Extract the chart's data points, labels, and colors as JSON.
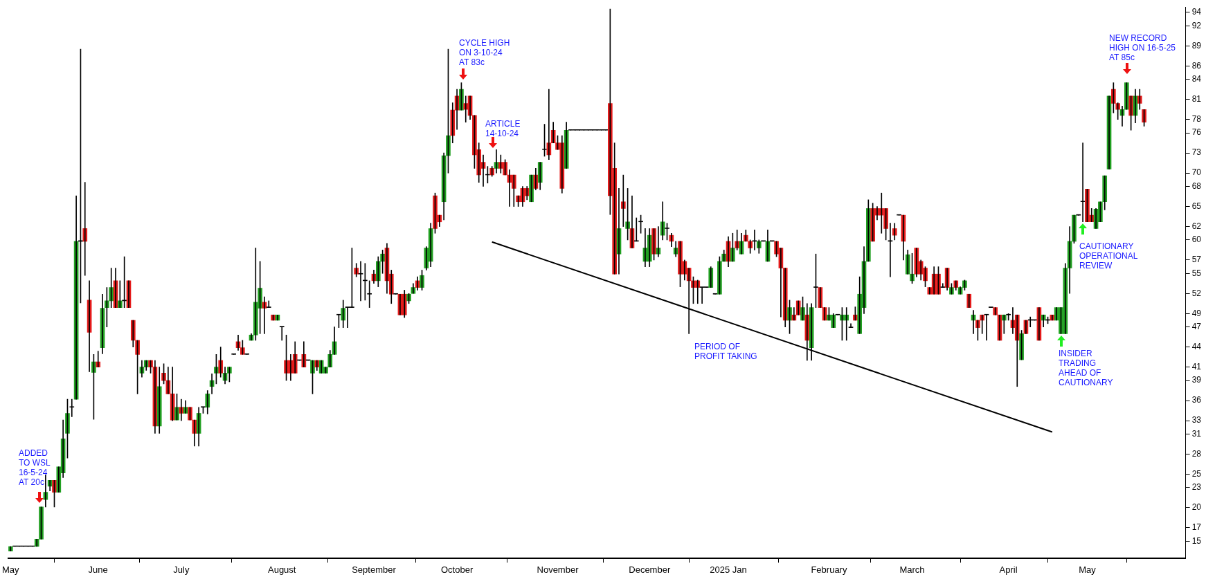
{
  "chart_data": {
    "type": "candlestick",
    "categories": [
      "May",
      null,
      null,
      null,
      null,
      null,
      null,
      null,
      null,
      null,
      null,
      null,
      null,
      null,
      null,
      null,
      null,
      null,
      null,
      null,
      "June",
      null,
      null,
      null,
      null,
      null,
      null,
      null,
      null,
      null,
      null,
      null,
      null,
      null,
      null,
      null,
      null,
      null,
      null,
      "July",
      null,
      null,
      null,
      null,
      null,
      null,
      null,
      null,
      null,
      null,
      null,
      null,
      null,
      null,
      null,
      null,
      null,
      null,
      null,
      null,
      null,
      null,
      "August",
      null,
      null,
      null,
      null,
      null,
      null,
      null,
      null,
      null,
      null,
      null,
      null,
      null,
      null,
      null,
      null,
      null,
      null,
      null,
      null,
      "September",
      null,
      null,
      null,
      null,
      null,
      null,
      null,
      null,
      null,
      null,
      null,
      null,
      null,
      null,
      null,
      null,
      null,
      null,
      "October",
      null,
      null,
      null,
      null,
      null,
      null,
      null,
      null,
      null,
      null,
      null,
      null,
      null,
      null,
      null,
      null,
      null,
      null,
      null,
      null,
      null,
      null,
      "November",
      null,
      null,
      null,
      null,
      null,
      null,
      null,
      null,
      null,
      null,
      null,
      null,
      null,
      null,
      null,
      null,
      null,
      null,
      null,
      null,
      "December",
      null,
      null,
      null,
      null,
      null,
      null,
      null,
      null,
      null,
      null,
      null,
      null,
      null,
      null,
      null,
      null,
      null,
      "2025 Jan",
      null,
      null,
      null,
      null,
      null,
      null,
      null,
      null,
      null,
      null,
      null,
      null,
      null,
      null,
      null,
      null,
      null,
      null,
      null,
      null,
      null,
      null,
      "February",
      null,
      null,
      null,
      null,
      null,
      null,
      null,
      null,
      null,
      null,
      null,
      null,
      null,
      null,
      null,
      null,
      null,
      null,
      "March",
      null,
      null,
      null,
      null,
      null,
      null,
      null,
      null,
      null,
      null,
      null,
      null,
      null,
      null,
      null,
      null,
      null,
      null,
      null,
      null,
      null,
      "April",
      null,
      null,
      null,
      null,
      null,
      null,
      null,
      null,
      null,
      null,
      null,
      null,
      null,
      null,
      null,
      null,
      null,
      "May",
      null,
      null,
      null,
      null,
      null,
      null,
      null,
      null,
      null,
      null,
      null,
      null,
      null,
      null,
      null,
      null,
      null,
      null,
      null,
      null,
      null,
      null
    ],
    "ohlc": [
      [
        13.5,
        14.2,
        13.5,
        14.2
      ],
      [
        14.2,
        14.2,
        14.2,
        14.2
      ],
      [
        14.2,
        14.2,
        14.2,
        14.2
      ],
      [
        14.2,
        14.2,
        14.2,
        14.2
      ],
      [
        14.2,
        14.2,
        14.2,
        14.2
      ],
      [
        14.2,
        14.2,
        14.2,
        14.2
      ],
      [
        14.2,
        15.3,
        14.2,
        15.3
      ],
      [
        15.3,
        20.1,
        15.3,
        20.1
      ],
      [
        21.2,
        24.9,
        20.1,
        22.3
      ],
      [
        23.2,
        24.1,
        22.5,
        24.1
      ],
      [
        24.1,
        24.1,
        20.1,
        22.3
      ],
      [
        22.3,
        26.1,
        22.3,
        26.1
      ],
      [
        25.2,
        33.1,
        24.5,
        30.3
      ],
      [
        31.1,
        36.2,
        27.4,
        34.1
      ],
      [
        35,
        36.2,
        33.6,
        35
      ],
      [
        36.2,
        66.6,
        36.2,
        59.8
      ],
      [
        59.8,
        88.5,
        50.6,
        59.8
      ],
      [
        61.7,
        68.6,
        54.7,
        59.8
      ],
      [
        51,
        53.9,
        40.3,
        46.2
      ],
      [
        40.2,
        42.9,
        33.2,
        41.8
      ],
      [
        41.8,
        43.4,
        41,
        41
      ],
      [
        43.9,
        51.9,
        43,
        49.8
      ],
      [
        49.9,
        52.9,
        47,
        50.9
      ],
      [
        50.9,
        55.8,
        49.9,
        52.9
      ],
      [
        53.9,
        55.8,
        49.9,
        49.9
      ],
      [
        49.9,
        53.9,
        49.9,
        50.9
      ],
      [
        50.9,
        57.5,
        49.9,
        50.9
      ],
      [
        53.9,
        53.9,
        49.9,
        49.9
      ],
      [
        48,
        48,
        44,
        45
      ],
      [
        45,
        45,
        37,
        42.9
      ],
      [
        40.1,
        42,
        39.5,
        41
      ],
      [
        41,
        42,
        40.5,
        42
      ],
      [
        42,
        42,
        40.1,
        41
      ],
      [
        41,
        42,
        31.1,
        32.2
      ],
      [
        32.2,
        41,
        31.1,
        38.1
      ],
      [
        40.1,
        41.5,
        38.5,
        39
      ],
      [
        39,
        41,
        37,
        37
      ],
      [
        37,
        41,
        33,
        33.1
      ],
      [
        33.1,
        37,
        33.1,
        35
      ],
      [
        35,
        36.2,
        33,
        34.1
      ],
      [
        34.1,
        36,
        34.1,
        35
      ],
      [
        35,
        35,
        33.1,
        33.1
      ],
      [
        33.1,
        33.1,
        29.2,
        31.1
      ],
      [
        31.1,
        35,
        29.2,
        34.1
      ],
      [
        35,
        35,
        34.1,
        35
      ],
      [
        35,
        37.5,
        34,
        37
      ],
      [
        38.1,
        40,
        37,
        39
      ],
      [
        40.1,
        42.9,
        38.5,
        41
      ],
      [
        42,
        44,
        39.5,
        40.1
      ],
      [
        39,
        41,
        38.5,
        40.1
      ],
      [
        40.1,
        41,
        38.8,
        41
      ],
      [
        42.9,
        42.9,
        42.9,
        42.9
      ],
      [
        44.8,
        45.8,
        43.5,
        43.9
      ],
      [
        43.9,
        45,
        42.9,
        42.9
      ],
      [
        42.9,
        42.9,
        42.9,
        42.9
      ],
      [
        45,
        46,
        45,
        45.8
      ],
      [
        45.8,
        58.8,
        45,
        50.7
      ],
      [
        49.8,
        56.8,
        46,
        52.8
      ],
      [
        50.7,
        51.5,
        46,
        49.8
      ],
      [
        49.9,
        50.9,
        49.9,
        49.9
      ],
      [
        48.8,
        48.8,
        48,
        48
      ],
      [
        48,
        48.8,
        48,
        48.8
      ],
      [
        47,
        47,
        45,
        47
      ],
      [
        42,
        45.8,
        39,
        40.1
      ],
      [
        42,
        42.9,
        39,
        40.1
      ],
      [
        42.9,
        44.8,
        40.1,
        40.1
      ],
      [
        42,
        42,
        42,
        42
      ],
      [
        42.9,
        44.8,
        41,
        41
      ],
      [
        42,
        42,
        42,
        42
      ],
      [
        40.1,
        42,
        37,
        42
      ],
      [
        42,
        42,
        40.5,
        41
      ],
      [
        40.1,
        42,
        40.1,
        42
      ],
      [
        40.1,
        41,
        40.1,
        41
      ],
      [
        41,
        43.5,
        41,
        42.9
      ],
      [
        42.9,
        47,
        42.9,
        44.8
      ],
      [
        48.8,
        48.8,
        46.9,
        48.8
      ],
      [
        48,
        51,
        46.9,
        49.8
      ],
      [
        49.9,
        49.9,
        46.9,
        49.9
      ],
      [
        49.9,
        58.8,
        49.9,
        49.9
      ],
      [
        55.8,
        56.5,
        54.5,
        54.9
      ],
      [
        54.9,
        56.8,
        50.9,
        54.9
      ],
      [
        53.9,
        56.5,
        51,
        53.9
      ],
      [
        51.9,
        53.9,
        49.9,
        51.9
      ],
      [
        54.9,
        55.5,
        53.5,
        53.9
      ],
      [
        53.9,
        57.5,
        53,
        56.8
      ],
      [
        56.8,
        58.5,
        55,
        57.9
      ],
      [
        58.8,
        59.5,
        52,
        53.9
      ],
      [
        54.9,
        55.5,
        50.5,
        51.9
      ],
      [
        51.9,
        51.9,
        51.9,
        51.9
      ],
      [
        51.9,
        51.9,
        48.8,
        48.8
      ],
      [
        51.9,
        52.5,
        48.4,
        48.8
      ],
      [
        50.9,
        52,
        50.5,
        51.9
      ],
      [
        52,
        53.5,
        52,
        52.9
      ],
      [
        53.9,
        54.5,
        52.5,
        52.9
      ],
      [
        52.9,
        55.5,
        52.5,
        54.7
      ],
      [
        55.8,
        59,
        55.5,
        58.8
      ],
      [
        56.8,
        62.5,
        56,
        61.7
      ],
      [
        66.6,
        67,
        61,
        61.7
      ],
      [
        63.7,
        63.7,
        62,
        62.7
      ],
      [
        65.7,
        73,
        63,
        72.6
      ],
      [
        72.6,
        88.5,
        70,
        75.6
      ],
      [
        79.4,
        80.5,
        74.5,
        75.6
      ],
      [
        81.5,
        82.5,
        76.5,
        79.4
      ],
      [
        79.4,
        83.5,
        79.4,
        82.5
      ],
      [
        80.4,
        81.5,
        77.6,
        79.5
      ],
      [
        81.5,
        81.5,
        78,
        78.6
      ],
      [
        78.6,
        78.6,
        70.7,
        72.7
      ],
      [
        73.5,
        74.5,
        68.6,
        69.7
      ],
      [
        71.6,
        72.7,
        68,
        70.7
      ],
      [
        69.7,
        71,
        68.5,
        69.7
      ],
      [
        70.7,
        71,
        69.5,
        69.7
      ],
      [
        70.7,
        73.5,
        70,
        71.6
      ],
      [
        71.6,
        72.7,
        70,
        70.7
      ],
      [
        71.6,
        72,
        69.7,
        69.7
      ],
      [
        69.7,
        70.5,
        65,
        68.6
      ],
      [
        69.7,
        69.7,
        65,
        67.7
      ],
      [
        66.6,
        66.6,
        65,
        65.7
      ],
      [
        67.7,
        68,
        65,
        65.7
      ],
      [
        67.7,
        68,
        66,
        66.6
      ],
      [
        65.7,
        69.7,
        65.7,
        69.7
      ],
      [
        69.7,
        70.7,
        67.5,
        67.7
      ],
      [
        68.6,
        71.6,
        67.5,
        71.6
      ],
      [
        73.5,
        77.3,
        72.5,
        73.5
      ],
      [
        74.5,
        82.5,
        72,
        72.7
      ],
      [
        76.4,
        77.6,
        74.5,
        74.5
      ],
      [
        74.5,
        75.6,
        73.5,
        73.5
      ],
      [
        74.5,
        75.6,
        67,
        67.7
      ],
      [
        70.7,
        77.6,
        70.7,
        76.4
      ],
      [
        76.4,
        76.4,
        76.4,
        76.4
      ],
      [
        76.4,
        76.4,
        76.4,
        76.4
      ],
      [
        76.4,
        76.4,
        76.4,
        76.4
      ],
      [
        76.4,
        76.4,
        76.4,
        76.4
      ],
      [
        76.4,
        76.4,
        76.4,
        76.4
      ],
      [
        76.4,
        76.4,
        76.4,
        76.4
      ],
      [
        76.4,
        76.4,
        76.4,
        76.4
      ],
      [
        76.4,
        76.4,
        76.4,
        76.4
      ],
      [
        76.4,
        76.4,
        76.4,
        76.4
      ],
      [
        80.4,
        94.5,
        63.8,
        66.6
      ],
      [
        70.7,
        74.5,
        54.9,
        54.9
      ],
      [
        57.9,
        67.7,
        54.9,
        61.7
      ],
      [
        65.7,
        69.7,
        62,
        64.7
      ],
      [
        61.7,
        67.7,
        60,
        62.7
      ],
      [
        61.7,
        66.6,
        58.8,
        58.8
      ],
      [
        59.8,
        63.3,
        59.8,
        59.8
      ],
      [
        62.7,
        63.7,
        61,
        62.7
      ],
      [
        56.8,
        61.7,
        56,
        58.8
      ],
      [
        56.8,
        61.7,
        56,
        60.7
      ],
      [
        61.7,
        61.7,
        57,
        57.9
      ],
      [
        57.9,
        62,
        57.5,
        58.8
      ],
      [
        60.7,
        65.7,
        60,
        62.7
      ],
      [
        61.7,
        62.5,
        60,
        61.7
      ],
      [
        60.7,
        61,
        59,
        59.8
      ],
      [
        57.9,
        59.8,
        57.5,
        58.8
      ],
      [
        59.8,
        59.8,
        53,
        54.9
      ],
      [
        56.8,
        57,
        54,
        54.9
      ],
      [
        55.8,
        55.8,
        46,
        53.9
      ],
      [
        53.9,
        54.5,
        50.5,
        52.9
      ],
      [
        53.9,
        54,
        50.5,
        52.9
      ],
      [
        52.9,
        52.9,
        50.5,
        52.9
      ],
      [
        52.9,
        52.9,
        52.9,
        52.9
      ],
      [
        52.9,
        56,
        52.9,
        55.8
      ],
      [
        51.9,
        51.9,
        51.9,
        51.9
      ],
      [
        51.9,
        57.5,
        51.9,
        56.8
      ],
      [
        56.8,
        58.5,
        56.8,
        57.9
      ],
      [
        59.8,
        60.5,
        56,
        56.8
      ],
      [
        56.8,
        61,
        56.8,
        58.8
      ],
      [
        59.8,
        61.5,
        58.5,
        58.8
      ],
      [
        57.9,
        61,
        57.9,
        59.8
      ],
      [
        60.7,
        61.5,
        59.8,
        59.8
      ],
      [
        59.8,
        60,
        58,
        58.8
      ],
      [
        59.8,
        61.5,
        58.5,
        59.8
      ],
      [
        58.8,
        60,
        58,
        59.8
      ],
      [
        59.8,
        59.8,
        59.8,
        59.8
      ],
      [
        56.8,
        61.5,
        56.8,
        59.8
      ],
      [
        59.8,
        59.8,
        59.8,
        59.8
      ],
      [
        59.8,
        59.8,
        57.5,
        57.9
      ],
      [
        58.8,
        58.8,
        48.5,
        55.8
      ],
      [
        55.8,
        55.8,
        47,
        48
      ],
      [
        48,
        51,
        46,
        49.9
      ],
      [
        48.8,
        49.9,
        48,
        48
      ],
      [
        50.9,
        50.9,
        48.8,
        48.8
      ],
      [
        48,
        51.5,
        48,
        49.9
      ],
      [
        48.8,
        50.5,
        42,
        45
      ],
      [
        43.9,
        50.5,
        42,
        49.9
      ],
      [
        52.9,
        57.9,
        49.9,
        52.9
      ],
      [
        52.9,
        52.9,
        49.9,
        49.9
      ],
      [
        49.9,
        49.9,
        48,
        48
      ],
      [
        48,
        49.9,
        48,
        48.8
      ],
      [
        46.9,
        49,
        46.9,
        48.8
      ],
      [
        48.8,
        48.8,
        48.8,
        48.8
      ],
      [
        48,
        49.9,
        45,
        48.8
      ],
      [
        48,
        49.9,
        45,
        48.8
      ],
      [
        46.9,
        47.5,
        46.9,
        46.9
      ],
      [
        48.8,
        50,
        48,
        48
      ],
      [
        46,
        54.5,
        46,
        51.9
      ],
      [
        49.9,
        59,
        49,
        56.8
      ],
      [
        56.8,
        66,
        56.8,
        64.7
      ],
      [
        64.7,
        65.5,
        59.8,
        59.8
      ],
      [
        64.7,
        65,
        63,
        63.7
      ],
      [
        64.7,
        67,
        61,
        63.7
      ],
      [
        64.7,
        64.7,
        60,
        61.7
      ],
      [
        59.8,
        62.5,
        54.5,
        59.8
      ],
      [
        61.7,
        62.5,
        60,
        60.7
      ],
      [
        63.7,
        63.7,
        63.7,
        63.7
      ],
      [
        63.7,
        63.7,
        57,
        59.8
      ],
      [
        54.9,
        58.5,
        54.9,
        57.8
      ],
      [
        53.9,
        58,
        53.5,
        54.9
      ],
      [
        58.8,
        58.8,
        54.5,
        54.9
      ],
      [
        56.8,
        57,
        54,
        54.9
      ],
      [
        55.8,
        56,
        53,
        53.9
      ],
      [
        52.9,
        52.9,
        51.9,
        51.9
      ],
      [
        54.9,
        56,
        51.9,
        51.9
      ],
      [
        54.9,
        56,
        51.9,
        51.9
      ],
      [
        52.9,
        53.5,
        52.9,
        52.9
      ],
      [
        55.8,
        55.8,
        52.5,
        52.9
      ],
      [
        51.9,
        53.5,
        51.9,
        52.9
      ],
      [
        53.9,
        53.9,
        52.5,
        52.9
      ],
      [
        51.9,
        53,
        51.9,
        52.9
      ],
      [
        52.9,
        54,
        52.5,
        53.9
      ],
      [
        51.9,
        51.9,
        49.9,
        49.9
      ],
      [
        48,
        49.5,
        46,
        48.8
      ],
      [
        48,
        48,
        45,
        46.9
      ],
      [
        48.8,
        48.8,
        46,
        48
      ],
      [
        48.8,
        48.8,
        45,
        48.8
      ],
      [
        49.9,
        49.9,
        49.9,
        49.9
      ],
      [
        49.9,
        49.9,
        48.8,
        48.8
      ],
      [
        48.8,
        48.8,
        45,
        45
      ],
      [
        48,
        48.8,
        46,
        48.8
      ],
      [
        48.8,
        49,
        48,
        48.8
      ],
      [
        48,
        49.9,
        46,
        46.9
      ],
      [
        48.8,
        48.8,
        38.1,
        45
      ],
      [
        42.1,
        46.5,
        42.1,
        46
      ],
      [
        48,
        48,
        46,
        46
      ],
      [
        48,
        48.5,
        47,
        48
      ],
      [
        48,
        48,
        48,
        48
      ],
      [
        49.9,
        49.9,
        45,
        45
      ],
      [
        48,
        48.8,
        47,
        48.8
      ],
      [
        48,
        48.5,
        47.5,
        48
      ],
      [
        48.8,
        48.8,
        48,
        48
      ],
      [
        48,
        49.9,
        48,
        49.9
      ],
      [
        46,
        49.9,
        46,
        49.9
      ],
      [
        46,
        56.5,
        46,
        55.8
      ],
      [
        55.8,
        62,
        52,
        59.8
      ],
      [
        59.8,
        63.7,
        59.5,
        63.7
      ],
      [
        63.7,
        63.7,
        63.7,
        63.7
      ],
      [
        65.7,
        74.5,
        62.7,
        65.7
      ],
      [
        67.6,
        67.6,
        62.7,
        62.7
      ],
      [
        63.7,
        64.7,
        62.7,
        62.7
      ],
      [
        61.7,
        64.7,
        61.7,
        64.6
      ],
      [
        62.7,
        65.7,
        62.7,
        65.7
      ],
      [
        65.7,
        69.6,
        64.5,
        69.6
      ],
      [
        70.6,
        81.5,
        70.6,
        81.5
      ],
      [
        82.5,
        83.5,
        79,
        80.4
      ],
      [
        80.4,
        80.5,
        78,
        79.5
      ],
      [
        78.6,
        80,
        77,
        79.5
      ],
      [
        79.5,
        83.5,
        79.5,
        83.5
      ],
      [
        81.5,
        81.5,
        76.4,
        78.6
      ],
      [
        78.6,
        82.5,
        77.5,
        81.5
      ],
      [
        81.5,
        82.5,
        79.5,
        80.4
      ],
      [
        79.5,
        79.5,
        77,
        77.6
      ],
      null,
      null,
      null,
      null,
      null,
      null,
      null,
      null,
      null
    ],
    "colors": [
      "#22a022",
      "#000000",
      "#000000",
      "#000000",
      "#000000",
      "#000000",
      "#22a022",
      "#22a022",
      "#22a022",
      "#22a022",
      "#e41b1b",
      "#22a022",
      "#22a022",
      "#22a022",
      "#000000",
      "#22a022",
      "#000000",
      "#e41b1b",
      "#e41b1b",
      "#22a022",
      "#e41b1b",
      "#22a022",
      "#22a022",
      "#22a022",
      "#e41b1b",
      "#22a022",
      "#000000",
      "#e41b1b",
      "#e41b1b",
      "#e41b1b",
      "#22a022",
      "#22a022",
      "#e41b1b",
      "#e41b1b",
      "#22a022",
      "#e41b1b",
      "#e41b1b",
      "#e41b1b",
      "#22a022",
      "#e41b1b",
      "#22a022",
      "#e41b1b",
      "#e41b1b",
      "#22a022",
      "#000000",
      "#22a022",
      "#22a022",
      "#22a022",
      "#e41b1b",
      "#22a022",
      "#22a022",
      "#000000",
      "#e41b1b",
      "#e41b1b",
      "#000000",
      "#22a022",
      "#22a022",
      "#22a022",
      "#e41b1b",
      "#000000",
      "#e41b1b",
      "#22a022",
      "#000000",
      "#e41b1b",
      "#e41b1b",
      "#e41b1b",
      "#000000",
      "#e41b1b",
      "#000000",
      "#22a022",
      "#e41b1b",
      "#22a022",
      "#22a022",
      "#22a022",
      "#22a022",
      "#000000",
      "#22a022",
      "#000000",
      "#000000",
      "#e41b1b",
      "#000000",
      "#000000",
      "#000000",
      "#e41b1b",
      "#22a022",
      "#22a022",
      "#e41b1b",
      "#e41b1b",
      "#000000",
      "#e41b1b",
      "#e41b1b",
      "#22a022",
      "#22a022",
      "#e41b1b",
      "#22a022",
      "#22a022",
      "#22a022",
      "#e41b1b",
      "#e41b1b",
      "#22a022",
      "#22a022",
      "#e41b1b",
      "#e41b1b",
      "#22a022",
      "#e41b1b",
      "#e41b1b",
      "#e41b1b",
      "#e41b1b",
      "#e41b1b",
      "#000000",
      "#e41b1b",
      "#22a022",
      "#e41b1b",
      "#e41b1b",
      "#e41b1b",
      "#e41b1b",
      "#e41b1b",
      "#e41b1b",
      "#e41b1b",
      "#22a022",
      "#e41b1b",
      "#22a022",
      "#000000",
      "#e41b1b",
      "#e41b1b",
      "#e41b1b",
      "#e41b1b",
      "#22a022",
      "#000000",
      "#000000",
      "#000000",
      "#000000",
      "#000000",
      "#000000",
      "#000000",
      "#000000",
      "#000000",
      "#e41b1b",
      "#e41b1b",
      "#22a022",
      "#e41b1b",
      "#22a022",
      "#e41b1b",
      "#000000",
      "#000000",
      "#22a022",
      "#22a022",
      "#e41b1b",
      "#22a022",
      "#22a022",
      "#000000",
      "#e41b1b",
      "#22a022",
      "#e41b1b",
      "#e41b1b",
      "#e41b1b",
      "#e41b1b",
      "#e41b1b",
      "#000000",
      "#000000",
      "#22a022",
      "#000000",
      "#22a022",
      "#22a022",
      "#e41b1b",
      "#22a022",
      "#e41b1b",
      "#22a022",
      "#e41b1b",
      "#e41b1b",
      "#000000",
      "#22a022",
      "#000000",
      "#22a022",
      "#000000",
      "#e41b1b",
      "#e41b1b",
      "#e41b1b",
      "#22a022",
      "#e41b1b",
      "#e41b1b",
      "#22a022",
      "#e41b1b",
      "#22a022",
      "#000000",
      "#e41b1b",
      "#e41b1b",
      "#22a022",
      "#22a022",
      "#000000",
      "#22a022",
      "#22a022",
      "#000000",
      "#e41b1b",
      "#22a022",
      "#22a022",
      "#22a022",
      "#e41b1b",
      "#e41b1b",
      "#e41b1b",
      "#e41b1b",
      "#000000",
      "#e41b1b",
      "#000000",
      "#e41b1b",
      "#22a022",
      "#22a022",
      "#e41b1b",
      "#e41b1b",
      "#e41b1b",
      "#e41b1b",
      "#e41b1b",
      "#e41b1b",
      "#000000",
      "#e41b1b",
      "#22a022",
      "#e41b1b",
      "#22a022",
      "#22a022",
      "#e41b1b",
      "#22a022",
      "#e41b1b",
      "#e41b1b",
      "#000000",
      "#000000",
      "#e41b1b",
      "#e41b1b",
      "#22a022",
      "#000000",
      "#e41b1b",
      "#e41b1b",
      "#22a022",
      "#e41b1b",
      "#000000",
      "#000000",
      "#e41b1b",
      "#22a022",
      "#000000",
      "#e41b1b",
      "#22a022",
      "#22a022",
      "#22a022",
      "#22a022",
      "#22a022",
      "#000000",
      "#000000",
      "#e41b1b",
      "#e41b1b",
      "#22a022",
      "#22a022",
      "#22a022",
      "#22a022",
      "#e41b1b",
      "#e41b1b",
      "#22a022",
      "#22a022",
      "#e41b1b",
      "#22a022",
      "#e41b1b",
      "#e41b1b",
      null,
      null,
      null,
      null,
      null,
      null,
      null,
      null,
      null
    ],
    "series": [
      {
        "type": "line",
        "color": "#000000",
        "values": [
          null,
          null,
          null,
          null,
          null,
          null,
          null,
          null,
          null,
          null,
          null,
          null,
          null,
          null,
          null,
          null,
          null,
          null,
          null,
          null,
          null,
          null,
          null,
          null,
          null,
          null,
          null,
          null,
          null,
          null,
          null,
          null,
          null,
          null,
          null,
          null,
          null,
          null,
          null,
          null,
          null,
          null,
          null,
          null,
          null,
          null,
          null,
          null,
          null,
          null,
          null,
          null,
          null,
          null,
          null,
          null,
          null,
          null,
          null,
          null,
          null,
          null,
          null,
          null,
          null,
          null,
          null,
          null,
          null,
          null,
          null,
          null,
          null,
          null,
          null,
          null,
          null,
          null,
          null,
          null,
          null,
          null,
          null,
          null,
          null,
          null,
          null,
          null,
          null,
          null,
          null,
          null,
          null,
          null,
          null,
          null,
          null,
          null,
          null,
          null,
          null,
          null,
          null,
          null,
          null,
          null,
          null,
          null,
          null,
          null,
          59.7,
          null,
          null,
          null,
          null,
          null,
          null,
          null,
          null,
          null,
          null,
          null,
          null,
          null,
          null,
          null,
          null,
          null,
          null,
          null,
          null,
          null,
          null,
          null,
          null,
          null,
          null,
          null,
          null,
          null,
          null,
          null,
          null,
          null,
          null,
          null,
          null,
          null,
          null,
          null,
          null,
          null,
          null,
          null,
          null,
          null,
          null,
          null,
          null,
          null,
          null,
          null,
          null,
          null,
          null,
          null,
          null,
          null,
          null,
          null,
          null,
          null,
          null,
          null,
          null,
          null,
          null,
          null,
          null,
          null,
          null,
          null,
          null,
          null,
          null,
          null,
          null,
          null,
          null,
          null,
          null,
          null,
          null,
          null,
          null,
          null,
          null,
          null,
          null,
          null,
          null,
          null,
          null,
          null,
          null,
          null,
          null,
          null,
          null,
          null,
          null,
          null,
          null,
          null,
          null,
          null,
          null,
          null,
          null,
          null,
          null,
          null,
          null,
          null,
          null,
          null,
          null,
          null,
          null,
          null,
          null,
          null,
          null,
          null,
          null,
          null,
          null,
          null,
          31.3,
          null,
          null,
          null,
          null,
          null,
          null,
          null,
          null,
          null,
          null,
          null,
          null,
          null,
          null,
          null,
          null,
          null,
          null,
          null,
          null,
          null,
          null,
          null,
          null,
          null,
          null,
          null,
          null,
          null,
          null
        ]
      }
    ],
    "ylim": [
      12.4,
      94.8
    ],
    "yticks": [
      15,
      17,
      20,
      23,
      25,
      28,
      31,
      33,
      36,
      39,
      41,
      44,
      47,
      49,
      52,
      55,
      57,
      60,
      62,
      65,
      68,
      70,
      73,
      76,
      78,
      81,
      84,
      86,
      89,
      92,
      94
    ],
    "annotations": [
      "ADDED\nTO WSL\n16-5-24\nAT 20c",
      "CYCLE HIGH\nON 3-10-24\nAT 83c",
      "ARTICLE\n14-10-24",
      "PERIOD OF\nPROFIT TAKING",
      "INSIDER\nTRADING\nAHEAD OF\nCAUTIONARY",
      "CAUTIONARY\nOPERATIONAL\nREVIEW",
      "NEW RECORD\nHIGH ON 16-5-25\nAT 85c"
    ]
  }
}
